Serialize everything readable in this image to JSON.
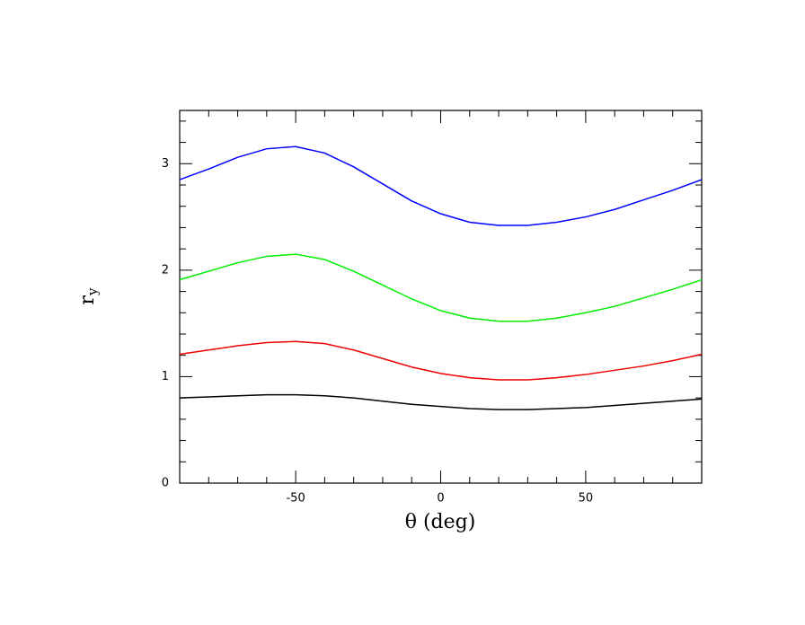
{
  "chart_data": {
    "type": "line",
    "xlabel": "θ (deg)",
    "ylabel": "r",
    "ylabel_subscript": "y",
    "x": [
      -90,
      -80,
      -70,
      -60,
      -50,
      -40,
      -30,
      -20,
      -10,
      0,
      10,
      20,
      30,
      40,
      50,
      60,
      70,
      80,
      90
    ],
    "series": [
      {
        "color": "#0000ff",
        "values": [
          2.85,
          2.95,
          3.06,
          3.14,
          3.16,
          3.1,
          2.97,
          2.81,
          2.65,
          2.53,
          2.45,
          2.42,
          2.42,
          2.45,
          2.5,
          2.57,
          2.66,
          2.75,
          2.85
        ]
      },
      {
        "color": "#00ee00",
        "values": [
          1.91,
          1.99,
          2.07,
          2.13,
          2.15,
          2.1,
          1.99,
          1.86,
          1.73,
          1.62,
          1.55,
          1.52,
          1.52,
          1.55,
          1.6,
          1.66,
          1.74,
          1.82,
          1.91
        ]
      },
      {
        "color": "#ee0000",
        "values": [
          1.21,
          1.25,
          1.29,
          1.32,
          1.33,
          1.31,
          1.25,
          1.17,
          1.09,
          1.03,
          0.99,
          0.97,
          0.97,
          0.99,
          1.02,
          1.06,
          1.1,
          1.15,
          1.21
        ]
      },
      {
        "color": "#000000",
        "values": [
          0.8,
          0.81,
          0.82,
          0.83,
          0.83,
          0.82,
          0.8,
          0.77,
          0.74,
          0.72,
          0.7,
          0.69,
          0.69,
          0.7,
          0.71,
          0.73,
          0.75,
          0.77,
          0.79
        ]
      }
    ],
    "xlim": [
      -90,
      90
    ],
    "ylim": [
      0,
      3.5
    ],
    "xticks": [
      -50,
      0,
      50
    ],
    "yticks": [
      0,
      1,
      2,
      3
    ],
    "xminorticks": [
      -80,
      -70,
      -60,
      -40,
      -30,
      -20,
      -10,
      10,
      20,
      30,
      40,
      60,
      70,
      80
    ],
    "yminorticks": [
      0.2,
      0.4,
      0.6,
      0.8,
      1.2,
      1.4,
      1.6,
      1.8,
      2.2,
      2.4,
      2.6,
      2.8,
      3.2,
      3.4
    ]
  }
}
